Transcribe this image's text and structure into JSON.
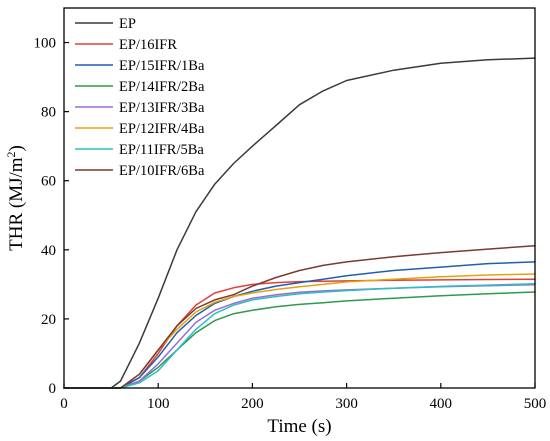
{
  "chart_data": {
    "type": "line",
    "xlabel": "Time (s)",
    "ylabel_main": "THR (MJ/m",
    "ylabel_sup": "2",
    "ylabel_close": ")",
    "xlim": [
      0,
      500
    ],
    "ylim": [
      0,
      110
    ],
    "xticks": [
      0,
      100,
      200,
      300,
      400,
      500
    ],
    "yticks": [
      0,
      20,
      40,
      60,
      80,
      100
    ],
    "grid": false,
    "legend_position": "top-left",
    "x": [
      0,
      50,
      60,
      80,
      100,
      120,
      140,
      160,
      180,
      200,
      225,
      250,
      275,
      300,
      350,
      400,
      450,
      500
    ],
    "series": [
      {
        "name": "EP",
        "color": "#3a3a3a",
        "values": [
          0,
          0,
          2,
          13,
          26,
          40,
          51,
          59,
          65,
          70,
          76,
          82,
          86,
          89,
          92,
          94,
          95,
          95.5
        ]
      },
      {
        "name": "EP/16IFR",
        "color": "#e0403a",
        "values": [
          0,
          0,
          0,
          3,
          10,
          18,
          24,
          27.5,
          29,
          30,
          30.5,
          30.8,
          30.9,
          31,
          31.2,
          31.3,
          31.4,
          31.5
        ]
      },
      {
        "name": "EP/15IFR/1Ba",
        "color": "#1f5faf",
        "values": [
          0,
          0,
          0,
          3,
          9,
          16,
          21,
          24.5,
          26.5,
          28,
          29.5,
          30.5,
          31.5,
          32.5,
          34,
          35,
          36,
          36.5
        ]
      },
      {
        "name": "EP/14IFR/2Ba",
        "color": "#2e9a4e",
        "values": [
          0,
          0,
          0,
          2,
          6,
          11,
          16,
          19.5,
          21.5,
          22.5,
          23.5,
          24.2,
          24.7,
          25.2,
          26,
          26.7,
          27.3,
          27.8
        ]
      },
      {
        "name": "EP/13IFR/3Ba",
        "color": "#9a6bd6",
        "values": [
          0,
          0,
          0,
          2,
          7,
          13,
          19,
          22.5,
          24.5,
          26,
          27,
          27.7,
          28.1,
          28.4,
          28.9,
          29.3,
          29.6,
          29.9
        ]
      },
      {
        "name": "EP/12IFR/4Ba",
        "color": "#e6a012",
        "values": [
          0,
          0,
          0,
          4,
          11,
          17,
          22,
          24.8,
          26.5,
          27.5,
          28.5,
          29.3,
          30,
          30.7,
          31.5,
          32.2,
          32.7,
          33
        ]
      },
      {
        "name": "EP/11IFR/5Ba",
        "color": "#29c0c0",
        "values": [
          0,
          0,
          0,
          1.5,
          5,
          11,
          17,
          21.5,
          24,
          25.5,
          26.5,
          27.3,
          27.8,
          28.2,
          28.9,
          29.4,
          29.8,
          30.2
        ]
      },
      {
        "name": "EP/10IFR/6Ba",
        "color": "#7a3a2e",
        "values": [
          0,
          0,
          0,
          4,
          11,
          18,
          23,
          25.5,
          27,
          29.5,
          32,
          34,
          35.5,
          36.5,
          38,
          39.2,
          40.2,
          41.2
        ]
      }
    ]
  }
}
